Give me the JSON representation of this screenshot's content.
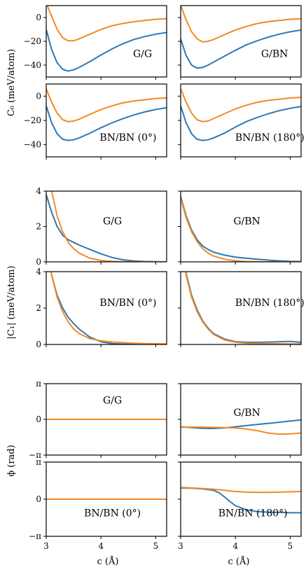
{
  "colors": {
    "series_blue": "#2f78b4",
    "series_orange": "#f28a24",
    "axes": "#000000"
  },
  "ylabels": {
    "c0": "C₀ (meV/atom)",
    "c1": "|C₁| (meV/atom)",
    "phi": "ϕ (rad)"
  },
  "xlabel": "c (Å)",
  "chart_data": [
    {
      "type": "line",
      "title": "G/G",
      "ylim": [
        -50,
        10
      ],
      "yticks": [
        0,
        -20,
        -40
      ],
      "ytick_labels": [
        "0",
        "−20",
        "−40"
      ],
      "xlim": [
        3,
        5.2
      ],
      "series": [
        {
          "color": "#2f78b4",
          "x": [
            3.0,
            3.1,
            3.2,
            3.3,
            3.4,
            3.5,
            3.6,
            3.8,
            4.0,
            4.2,
            4.4,
            4.6,
            4.8,
            5.0,
            5.2
          ],
          "y": [
            -10,
            -27,
            -38,
            -43.5,
            -45,
            -44,
            -42,
            -37,
            -31.5,
            -26.5,
            -22,
            -18.5,
            -16,
            -14,
            -12.5
          ]
        },
        {
          "color": "#f28a24",
          "x": [
            3.0,
            3.1,
            3.2,
            3.3,
            3.4,
            3.5,
            3.6,
            3.8,
            4.0,
            4.2,
            4.4,
            4.6,
            4.8,
            5.0,
            5.2
          ],
          "y": [
            12,
            1,
            -10,
            -17,
            -19.5,
            -19.5,
            -18,
            -14,
            -10,
            -7,
            -5,
            -3.5,
            -2.5,
            -1.5,
            -1
          ]
        }
      ]
    },
    {
      "type": "line",
      "title": "G/BN",
      "ylim": [
        -50,
        10
      ],
      "yticks": [
        0,
        -20,
        -40
      ],
      "ytick_labels": [
        "",
        "",
        ""
      ],
      "xlim": [
        3,
        5.2
      ],
      "series": [
        {
          "color": "#2f78b4",
          "x": [
            3.0,
            3.1,
            3.2,
            3.3,
            3.4,
            3.5,
            3.6,
            3.8,
            4.0,
            4.2,
            4.4,
            4.6,
            4.8,
            5.0,
            5.2
          ],
          "y": [
            -18,
            -32,
            -40,
            -42.5,
            -42,
            -40,
            -37.5,
            -32.5,
            -27.5,
            -23,
            -19.5,
            -16.5,
            -14,
            -12,
            -10.5
          ]
        },
        {
          "color": "#f28a24",
          "x": [
            3.0,
            3.1,
            3.2,
            3.3,
            3.4,
            3.5,
            3.6,
            3.8,
            4.0,
            4.2,
            4.4,
            4.6,
            4.8,
            5.0,
            5.2
          ],
          "y": [
            10,
            -2,
            -12,
            -18,
            -20.5,
            -20,
            -18.5,
            -14.5,
            -10.5,
            -7.5,
            -5,
            -3.5,
            -2.5,
            -1.5,
            -1
          ]
        }
      ]
    },
    {
      "type": "line",
      "title": "BN/BN (0°)",
      "ylim": [
        -50,
        10
      ],
      "yticks": [
        0,
        -20,
        -40
      ],
      "ytick_labels": [
        "0",
        "−20",
        "−40"
      ],
      "xlim": [
        3,
        5.2
      ],
      "series": [
        {
          "color": "#2f78b4",
          "x": [
            3.0,
            3.1,
            3.2,
            3.3,
            3.4,
            3.5,
            3.6,
            3.8,
            4.0,
            4.2,
            4.4,
            4.6,
            4.8,
            5.0,
            5.2
          ],
          "y": [
            -8,
            -22,
            -31,
            -35.5,
            -36.5,
            -36,
            -34.5,
            -30.5,
            -26,
            -22,
            -18.5,
            -15.5,
            -13,
            -11,
            -9.5
          ]
        },
        {
          "color": "#f28a24",
          "x": [
            3.0,
            3.1,
            3.2,
            3.3,
            3.4,
            3.5,
            3.6,
            3.8,
            4.0,
            4.2,
            4.4,
            4.6,
            4.8,
            5.0,
            5.2
          ],
          "y": [
            6,
            -5,
            -14,
            -19.5,
            -21,
            -20.5,
            -19,
            -15,
            -11,
            -8,
            -5.5,
            -4,
            -3,
            -2,
            -1.5
          ]
        }
      ]
    },
    {
      "type": "line",
      "title": "BN/BN (180°)",
      "ylim": [
        -50,
        10
      ],
      "yticks": [
        0,
        -20,
        -40
      ],
      "ytick_labels": [
        "",
        "",
        ""
      ],
      "xlim": [
        3,
        5.2
      ],
      "series": [
        {
          "color": "#2f78b4",
          "x": [
            3.0,
            3.1,
            3.2,
            3.3,
            3.4,
            3.5,
            3.6,
            3.8,
            4.0,
            4.2,
            4.4,
            4.6,
            4.8,
            5.0,
            5.2
          ],
          "y": [
            -8,
            -22,
            -31,
            -35.5,
            -36.5,
            -36,
            -34.5,
            -30.5,
            -25.5,
            -21,
            -17.5,
            -14.5,
            -12,
            -10,
            -8.5
          ]
        },
        {
          "color": "#f28a24",
          "x": [
            3.0,
            3.1,
            3.2,
            3.3,
            3.4,
            3.5,
            3.6,
            3.8,
            4.0,
            4.2,
            4.4,
            4.6,
            4.8,
            5.0,
            5.2
          ],
          "y": [
            6,
            -5,
            -14,
            -19.5,
            -21,
            -20.5,
            -18.5,
            -14.5,
            -10.5,
            -7.5,
            -5,
            -3.5,
            -2.5,
            -1.5,
            -1
          ]
        }
      ]
    },
    {
      "type": "line",
      "title": "G/G",
      "ylim": [
        0,
        4
      ],
      "yticks": [
        0,
        2,
        4
      ],
      "ytick_labels": [
        "0",
        "2",
        "4"
      ],
      "xlim": [
        3,
        5.2
      ],
      "series": [
        {
          "color": "#2f78b4",
          "x": [
            3.0,
            3.1,
            3.2,
            3.3,
            3.4,
            3.5,
            3.6,
            3.8,
            4.0,
            4.2,
            4.4,
            4.6,
            4.8,
            5.0,
            5.2
          ],
          "y": [
            3.8,
            2.8,
            2.0,
            1.5,
            1.25,
            1.1,
            0.95,
            0.7,
            0.45,
            0.25,
            0.12,
            0.05,
            0.02,
            0.01,
            0.0
          ]
        },
        {
          "color": "#f28a24",
          "x": [
            3.0,
            3.1,
            3.2,
            3.3,
            3.4,
            3.5,
            3.6,
            3.8,
            4.0,
            4.2,
            4.4,
            4.6,
            4.8,
            5.0,
            5.2
          ],
          "y": [
            6,
            4.0,
            2.6,
            1.7,
            1.1,
            0.75,
            0.5,
            0.2,
            0.08,
            0.03,
            0.01,
            0.0,
            0.0,
            0.0,
            0.0
          ]
        }
      ]
    },
    {
      "type": "line",
      "title": "G/BN",
      "ylim": [
        0,
        4
      ],
      "yticks": [
        0,
        2,
        4
      ],
      "ytick_labels": [
        "",
        "",
        ""
      ],
      "xlim": [
        3,
        5.2
      ],
      "series": [
        {
          "color": "#2f78b4",
          "x": [
            3.0,
            3.1,
            3.2,
            3.3,
            3.4,
            3.5,
            3.6,
            3.8,
            4.0,
            4.2,
            4.4,
            4.6,
            4.8,
            5.0,
            5.2
          ],
          "y": [
            3.7,
            2.6,
            1.8,
            1.25,
            0.9,
            0.7,
            0.55,
            0.38,
            0.27,
            0.2,
            0.15,
            0.1,
            0.06,
            0.03,
            0.02
          ]
        },
        {
          "color": "#f28a24",
          "x": [
            3.0,
            3.1,
            3.2,
            3.3,
            3.4,
            3.5,
            3.6,
            3.8,
            4.0,
            4.2,
            4.4,
            4.6,
            4.8,
            5.0,
            5.2
          ],
          "y": [
            3.6,
            2.5,
            1.7,
            1.15,
            0.75,
            0.5,
            0.33,
            0.15,
            0.06,
            0.02,
            0.01,
            0.0,
            0.0,
            0.0,
            0.0
          ]
        }
      ]
    },
    {
      "type": "line",
      "title": "BN/BN (0°)",
      "ylim": [
        0,
        4
      ],
      "yticks": [
        0,
        2,
        4
      ],
      "ytick_labels": [
        "0",
        "2",
        "4"
      ],
      "xlim": [
        3,
        5.2
      ],
      "series": [
        {
          "color": "#2f78b4",
          "x": [
            3.0,
            3.1,
            3.2,
            3.3,
            3.4,
            3.5,
            3.6,
            3.8,
            4.0,
            4.2,
            4.4,
            4.6,
            4.8,
            5.0,
            5.2
          ],
          "y": [
            5.5,
            3.8,
            2.7,
            2.0,
            1.5,
            1.15,
            0.85,
            0.4,
            0.15,
            0.05,
            0.02,
            0.01,
            0.0,
            0.0,
            0.0
          ]
        },
        {
          "color": "#f28a24",
          "x": [
            3.0,
            3.1,
            3.2,
            3.3,
            3.4,
            3.5,
            3.6,
            3.8,
            4.0,
            4.2,
            4.4,
            4.6,
            4.8,
            5.0,
            5.2
          ],
          "y": [
            5.5,
            3.8,
            2.6,
            1.8,
            1.25,
            0.85,
            0.6,
            0.32,
            0.2,
            0.14,
            0.1,
            0.07,
            0.05,
            0.04,
            0.03
          ]
        }
      ]
    },
    {
      "type": "line",
      "title": "BN/BN (180°)",
      "ylim": [
        0,
        4
      ],
      "yticks": [
        0,
        2,
        4
      ],
      "ytick_labels": [
        "",
        "",
        ""
      ],
      "xlim": [
        3,
        5.2
      ],
      "series": [
        {
          "color": "#2f78b4",
          "x": [
            3.0,
            3.1,
            3.2,
            3.3,
            3.4,
            3.5,
            3.6,
            3.8,
            4.0,
            4.2,
            4.4,
            4.6,
            4.8,
            5.0,
            5.2
          ],
          "y": [
            5.5,
            3.9,
            2.7,
            1.9,
            1.3,
            0.9,
            0.6,
            0.3,
            0.15,
            0.12,
            0.12,
            0.13,
            0.15,
            0.17,
            0.12
          ]
        },
        {
          "color": "#f28a24",
          "x": [
            3.0,
            3.1,
            3.2,
            3.3,
            3.4,
            3.5,
            3.6,
            3.8,
            4.0,
            4.2,
            4.4,
            4.6,
            4.8,
            5.0,
            5.2
          ],
          "y": [
            5.5,
            3.8,
            2.6,
            1.8,
            1.25,
            0.85,
            0.55,
            0.25,
            0.12,
            0.07,
            0.05,
            0.04,
            0.04,
            0.03,
            0.03
          ]
        }
      ]
    },
    {
      "type": "line",
      "title": "G/G",
      "ylim": [
        -3.1416,
        3.1416
      ],
      "yticks": [
        3.1416,
        0,
        -3.1416
      ],
      "ytick_labels": [
        "π",
        "0",
        "−π"
      ],
      "xlim": [
        3,
        5.2
      ],
      "series": [
        {
          "color": "#2f78b4",
          "x": [
            3.0,
            5.2
          ],
          "y": [
            0.0,
            0.0
          ]
        },
        {
          "color": "#f28a24",
          "x": [
            3.0,
            5.2
          ],
          "y": [
            0.0,
            0.0
          ]
        }
      ]
    },
    {
      "type": "line",
      "title": "G/BN",
      "ylim": [
        -3.1416,
        3.1416
      ],
      "yticks": [
        3.1416,
        0,
        -3.1416
      ],
      "ytick_labels": [
        "",
        "",
        ""
      ],
      "xlim": [
        3,
        5.2
      ],
      "series": [
        {
          "color": "#2f78b4",
          "x": [
            3.0,
            3.2,
            3.4,
            3.6,
            3.8,
            4.0,
            4.2,
            4.4,
            4.6,
            4.8,
            5.0,
            5.2
          ],
          "y": [
            -0.65,
            -0.72,
            -0.78,
            -0.8,
            -0.75,
            -0.65,
            -0.55,
            -0.45,
            -0.35,
            -0.25,
            -0.15,
            -0.05
          ]
        },
        {
          "color": "#f28a24",
          "x": [
            3.0,
            3.2,
            3.4,
            3.6,
            3.8,
            4.0,
            4.2,
            4.4,
            4.6,
            4.8,
            5.0,
            5.2
          ],
          "y": [
            -0.7,
            -0.68,
            -0.68,
            -0.7,
            -0.72,
            -0.75,
            -0.85,
            -1.0,
            -1.2,
            -1.3,
            -1.28,
            -1.2
          ]
        }
      ]
    },
    {
      "type": "line",
      "title": "BN/BN (0°)",
      "ylim": [
        -3.1416,
        3.1416
      ],
      "yticks": [
        3.1416,
        0,
        -3.1416
      ],
      "ytick_labels": [
        "π",
        "0",
        "−π"
      ],
      "xlim": [
        3,
        5.2
      ],
      "series": [
        {
          "color": "#2f78b4",
          "x": [
            3.0,
            5.2
          ],
          "y": [
            0.0,
            0.0
          ]
        },
        {
          "color": "#f28a24",
          "x": [
            3.0,
            5.2
          ],
          "y": [
            0.0,
            0.0
          ]
        }
      ]
    },
    {
      "type": "line",
      "title": "BN/BN (180°)",
      "ylim": [
        -3.1416,
        3.1416
      ],
      "yticks": [
        3.1416,
        0,
        -3.1416
      ],
      "ytick_labels": [
        "",
        "",
        ""
      ],
      "xlim": [
        3,
        5.2
      ],
      "series": [
        {
          "color": "#2f78b4",
          "x": [
            3.0,
            3.2,
            3.4,
            3.6,
            3.7,
            3.8,
            3.9,
            4.0,
            4.2,
            4.4,
            4.6,
            4.8,
            5.0,
            5.2
          ],
          "y": [
            0.95,
            0.93,
            0.88,
            0.75,
            0.55,
            0.2,
            -0.2,
            -0.55,
            -0.9,
            -1.05,
            -1.1,
            -1.12,
            -1.15,
            -1.15
          ]
        },
        {
          "color": "#f28a24",
          "x": [
            3.0,
            3.2,
            3.4,
            3.6,
            3.8,
            4.0,
            4.2,
            4.4,
            4.6,
            4.8,
            5.0,
            5.2
          ],
          "y": [
            1.0,
            0.95,
            0.9,
            0.85,
            0.75,
            0.65,
            0.6,
            0.58,
            0.58,
            0.6,
            0.62,
            0.65
          ]
        }
      ]
    }
  ]
}
